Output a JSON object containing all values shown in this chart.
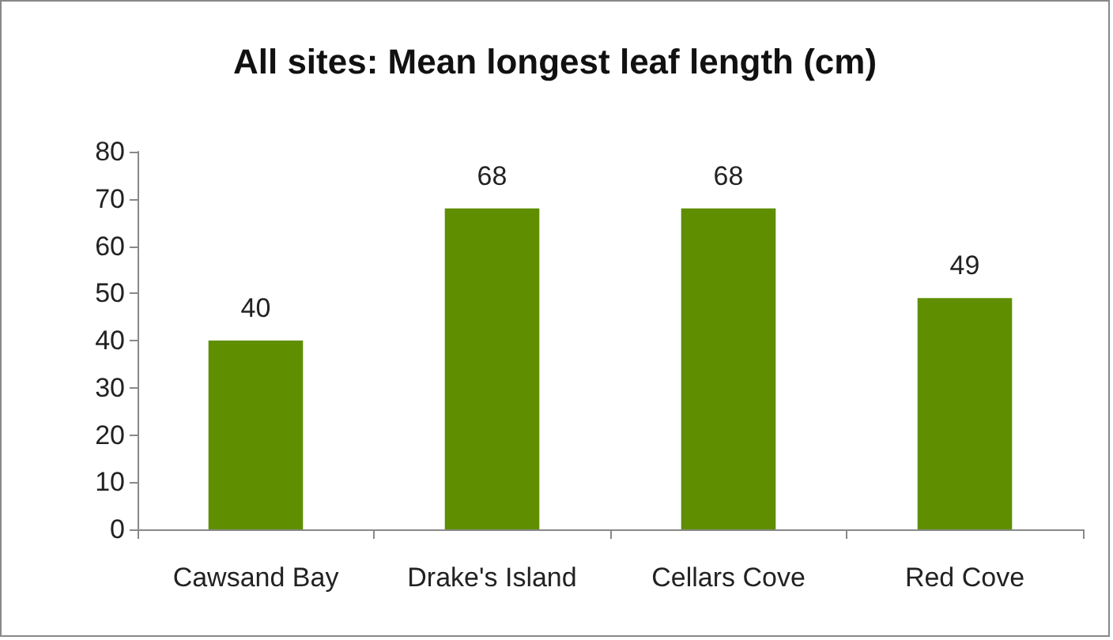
{
  "chart_data": {
    "type": "bar",
    "title": "All sites: Mean longest leaf length (cm)",
    "categories": [
      "Cawsand Bay",
      "Drake's Island",
      "Cellars Cove",
      "Red Cove"
    ],
    "values": [
      40,
      68,
      68,
      49
    ],
    "color": "#5f8f00",
    "ylim": [
      0,
      80
    ],
    "yticks": [
      0,
      10,
      20,
      30,
      40,
      50,
      60,
      70,
      80
    ],
    "data_labels": true
  }
}
